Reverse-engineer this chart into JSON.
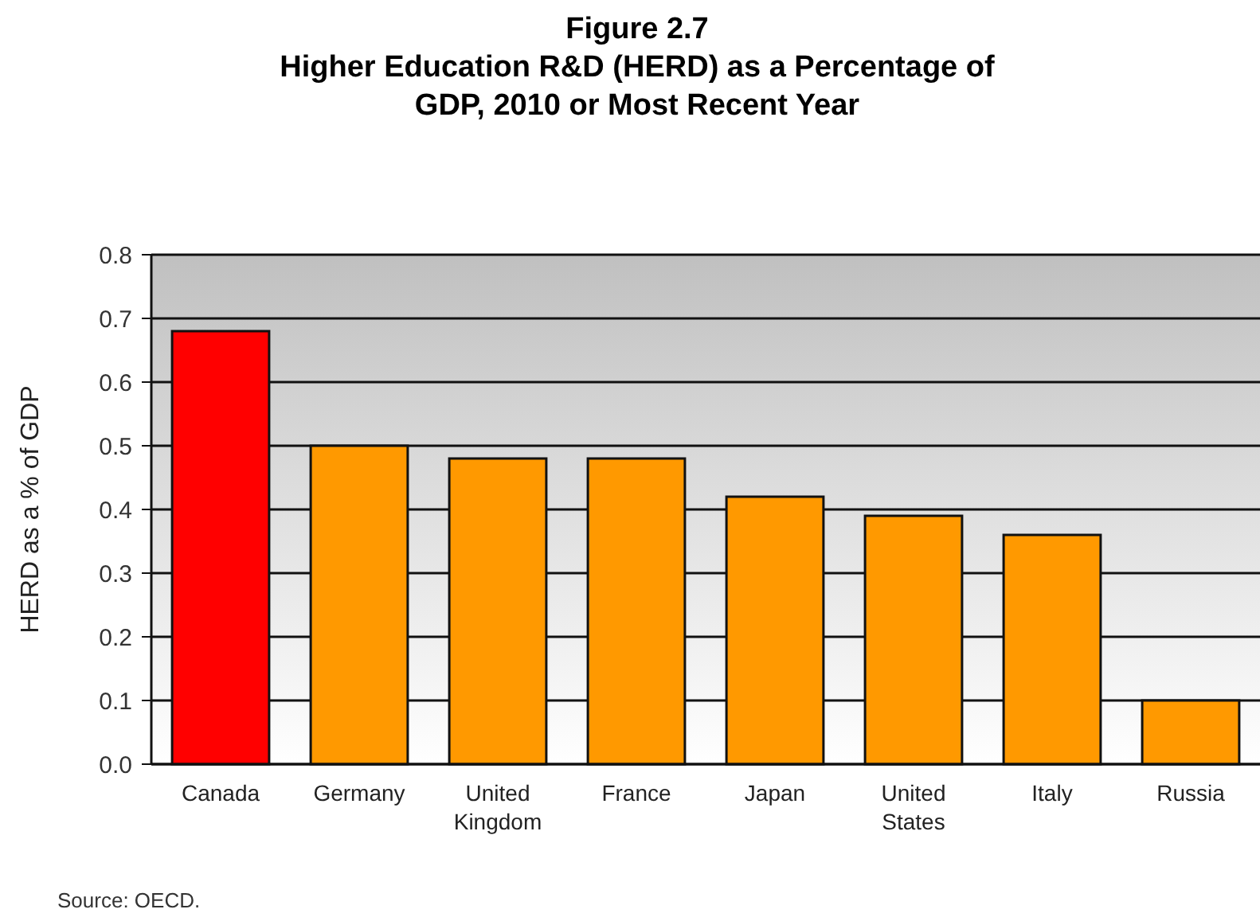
{
  "chart_data": {
    "type": "bar",
    "title": "Figure 2.7",
    "subtitle": "Higher Education R&D (HERD) as a Percentage of GDP, 2010 or Most Recent Year",
    "ylabel": "HERD as a % of GDP",
    "categories": [
      "Canada",
      "Germany",
      "United Kingdom",
      "France",
      "Japan",
      "United States",
      "Italy",
      "Russia"
    ],
    "values": [
      0.68,
      0.5,
      0.48,
      0.48,
      0.42,
      0.39,
      0.36,
      0.1
    ],
    "colors": [
      "#ff0000",
      "#ff9900",
      "#ff9900",
      "#ff9900",
      "#ff9900",
      "#ff9900",
      "#ff9900",
      "#ff9900"
    ],
    "ylim": [
      0,
      0.8
    ],
    "yticks": [
      {
        "value": 0,
        "label": "0.0"
      },
      {
        "value": 0.1,
        "label": "0.1"
      },
      {
        "value": 0.2,
        "label": "0.2"
      },
      {
        "value": 0.3,
        "label": "0.3"
      },
      {
        "value": 0.4,
        "label": "0.4"
      },
      {
        "value": 0.5,
        "label": "0.5"
      },
      {
        "value": 0.6,
        "label": "0.6"
      },
      {
        "value": 0.7,
        "label": "0.7"
      },
      {
        "value": 0.8,
        "label": "0.8"
      }
    ],
    "grid": "y",
    "annotations": [
      "Source: OECD."
    ]
  }
}
